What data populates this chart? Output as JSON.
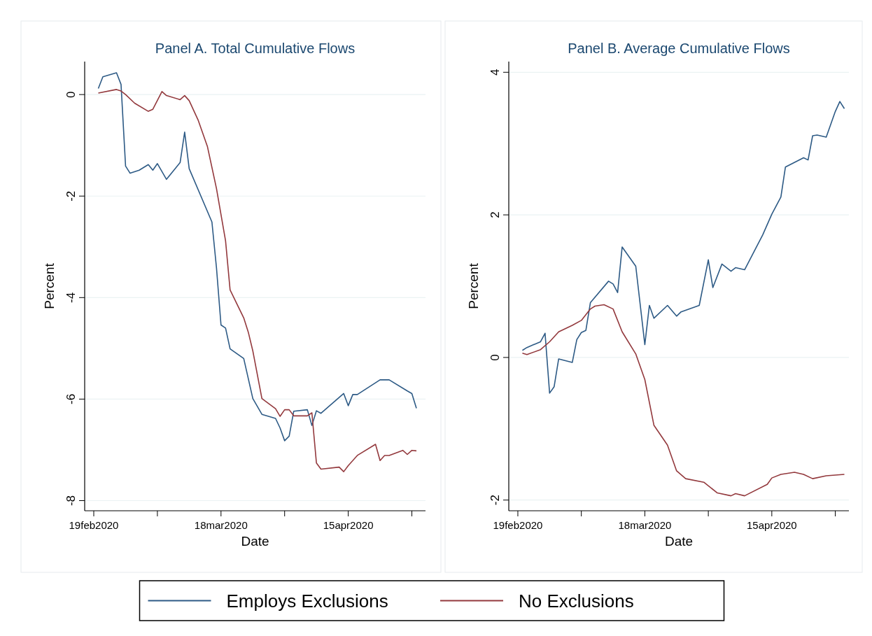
{
  "chart_data": [
    {
      "type": "line",
      "title": "Panel A. Total Cumulative Flows",
      "xlabel": "Date",
      "ylabel": "Percent",
      "xlim": [
        "2020-02-17",
        "2020-05-02"
      ],
      "ylim": [
        -8.2,
        0.65
      ],
      "xticks": [
        {
          "value": "2020-02-19",
          "label": "19feb2020"
        },
        {
          "value": "2020-03-04",
          "label": null
        },
        {
          "value": "2020-03-18",
          "label": "18mar2020"
        },
        {
          "value": "2020-04-01",
          "label": null
        },
        {
          "value": "2020-04-15",
          "label": "15apr2020"
        },
        {
          "value": "2020-04-29",
          "label": null
        }
      ],
      "yticks": [
        0,
        -2,
        -4,
        -6,
        -8
      ],
      "grid": "y",
      "legend": "bottom",
      "series": [
        {
          "name": "Employs Exclusions",
          "color": "#2d5a85",
          "x": [
            "2020-02-20",
            "2020-02-21",
            "2020-02-24",
            "2020-02-25",
            "2020-02-26",
            "2020-02-27",
            "2020-02-29",
            "2020-03-02",
            "2020-03-03",
            "2020-03-04",
            "2020-03-06",
            "2020-03-09",
            "2020-03-10",
            "2020-03-11",
            "2020-03-16",
            "2020-03-17",
            "2020-03-18",
            "2020-03-19",
            "2020-03-20",
            "2020-03-23",
            "2020-03-25",
            "2020-03-27",
            "2020-03-30",
            "2020-03-31",
            "2020-04-01",
            "2020-04-02",
            "2020-04-03",
            "2020-04-06",
            "2020-04-07",
            "2020-04-08",
            "2020-04-09",
            "2020-04-14",
            "2020-04-15",
            "2020-04-16",
            "2020-04-17",
            "2020-04-22",
            "2020-04-24",
            "2020-04-28",
            "2020-04-29",
            "2020-04-30"
          ],
          "values": [
            0.12,
            0.35,
            0.43,
            0.2,
            -1.41,
            -1.55,
            -1.49,
            -1.38,
            -1.49,
            -1.36,
            -1.67,
            -1.34,
            -0.74,
            -1.46,
            -2.51,
            -3.41,
            -4.54,
            -4.6,
            -5.01,
            -5.2,
            -5.99,
            -6.3,
            -6.38,
            -6.57,
            -6.82,
            -6.73,
            -6.24,
            -6.21,
            -6.52,
            -6.23,
            -6.28,
            -5.89,
            -6.13,
            -5.91,
            -5.91,
            -5.62,
            -5.62,
            -5.84,
            -5.89,
            -6.18
          ]
        },
        {
          "name": "No Exclusions",
          "color": "#93393d",
          "x": [
            "2020-02-20",
            "2020-02-24",
            "2020-02-25",
            "2020-02-26",
            "2020-02-28",
            "2020-03-02",
            "2020-03-03",
            "2020-03-05",
            "2020-03-06",
            "2020-03-09",
            "2020-03-10",
            "2020-03-11",
            "2020-03-13",
            "2020-03-15",
            "2020-03-17",
            "2020-03-19",
            "2020-03-20",
            "2020-03-23",
            "2020-03-24",
            "2020-03-25",
            "2020-03-27",
            "2020-03-30",
            "2020-03-31",
            "2020-04-01",
            "2020-04-02",
            "2020-04-03",
            "2020-04-06",
            "2020-04-07",
            "2020-04-08",
            "2020-04-09",
            "2020-04-13",
            "2020-04-14",
            "2020-04-15",
            "2020-04-17",
            "2020-04-21",
            "2020-04-22",
            "2020-04-23",
            "2020-04-24",
            "2020-04-27",
            "2020-04-28",
            "2020-04-29",
            "2020-04-30"
          ],
          "values": [
            0.03,
            0.1,
            0.07,
            0.0,
            -0.17,
            -0.33,
            -0.29,
            0.06,
            -0.02,
            -0.1,
            -0.02,
            -0.12,
            -0.51,
            -1.02,
            -1.85,
            -2.88,
            -3.85,
            -4.4,
            -4.68,
            -5.05,
            -5.99,
            -6.19,
            -6.34,
            -6.21,
            -6.21,
            -6.33,
            -6.33,
            -6.27,
            -7.26,
            -7.38,
            -7.34,
            -7.43,
            -7.31,
            -7.11,
            -6.89,
            -7.21,
            -7.11,
            -7.11,
            -7.01,
            -7.09,
            -7.01,
            -7.02
          ]
        }
      ]
    },
    {
      "type": "line",
      "title": "Panel B. Average Cumulative Flows",
      "xlabel": "Date",
      "ylabel": "Percent",
      "xlim": [
        "2020-02-17",
        "2020-05-02"
      ],
      "ylim": [
        -2.15,
        4.15
      ],
      "xticks": [
        {
          "value": "2020-02-19",
          "label": "19feb2020"
        },
        {
          "value": "2020-03-04",
          "label": null
        },
        {
          "value": "2020-03-18",
          "label": "18mar2020"
        },
        {
          "value": "2020-04-01",
          "label": null
        },
        {
          "value": "2020-04-15",
          "label": "15apr2020"
        },
        {
          "value": "2020-04-29",
          "label": null
        }
      ],
      "yticks": [
        4,
        2,
        0,
        -2
      ],
      "grid": "y",
      "series": [
        {
          "color": "#2d5a85",
          "x": [
            "2020-02-20",
            "2020-02-21",
            "2020-02-24",
            "2020-02-25",
            "2020-02-26",
            "2020-02-27",
            "2020-02-28",
            "2020-03-02",
            "2020-03-03",
            "2020-03-04",
            "2020-03-05",
            "2020-03-06",
            "2020-03-10",
            "2020-03-11",
            "2020-03-12",
            "2020-03-13",
            "2020-03-16",
            "2020-03-18",
            "2020-03-19",
            "2020-03-20",
            "2020-03-23",
            "2020-03-25",
            "2020-03-26",
            "2020-03-30",
            "2020-04-01",
            "2020-04-02",
            "2020-04-04",
            "2020-04-06",
            "2020-04-07",
            "2020-04-09",
            "2020-04-13",
            "2020-04-15",
            "2020-04-17",
            "2020-04-18",
            "2020-04-22",
            "2020-04-23",
            "2020-04-24",
            "2020-04-25",
            "2020-04-27",
            "2020-04-29",
            "2020-04-30",
            "2020-05-01"
          ],
          "values": [
            0.1,
            0.14,
            0.22,
            0.34,
            -0.5,
            -0.41,
            -0.02,
            -0.07,
            0.25,
            0.35,
            0.38,
            0.77,
            1.07,
            1.03,
            0.91,
            1.55,
            1.28,
            0.18,
            0.73,
            0.55,
            0.73,
            0.58,
            0.64,
            0.73,
            1.37,
            0.98,
            1.31,
            1.21,
            1.26,
            1.23,
            1.72,
            2.01,
            2.25,
            2.67,
            2.8,
            2.77,
            3.11,
            3.12,
            3.09,
            3.45,
            3.59,
            3.49
          ]
        },
        {
          "color": "#93393d",
          "x": [
            "2020-02-20",
            "2020-02-21",
            "2020-02-24",
            "2020-02-26",
            "2020-02-28",
            "2020-03-02",
            "2020-03-04",
            "2020-03-06",
            "2020-03-07",
            "2020-03-09",
            "2020-03-11",
            "2020-03-13",
            "2020-03-16",
            "2020-03-18",
            "2020-03-20",
            "2020-03-23",
            "2020-03-25",
            "2020-03-27",
            "2020-03-31",
            "2020-04-03",
            "2020-04-06",
            "2020-04-07",
            "2020-04-09",
            "2020-04-14",
            "2020-04-15",
            "2020-04-17",
            "2020-04-20",
            "2020-04-22",
            "2020-04-24",
            "2020-04-27",
            "2020-05-01"
          ],
          "values": [
            0.06,
            0.04,
            0.11,
            0.22,
            0.36,
            0.45,
            0.52,
            0.68,
            0.72,
            0.74,
            0.68,
            0.36,
            0.05,
            -0.31,
            -0.95,
            -1.23,
            -1.59,
            -1.7,
            -1.75,
            -1.9,
            -1.94,
            -1.91,
            -1.94,
            -1.78,
            -1.69,
            -1.64,
            -1.61,
            -1.64,
            -1.7,
            -1.66,
            -1.64
          ]
        }
      ]
    }
  ]
}
